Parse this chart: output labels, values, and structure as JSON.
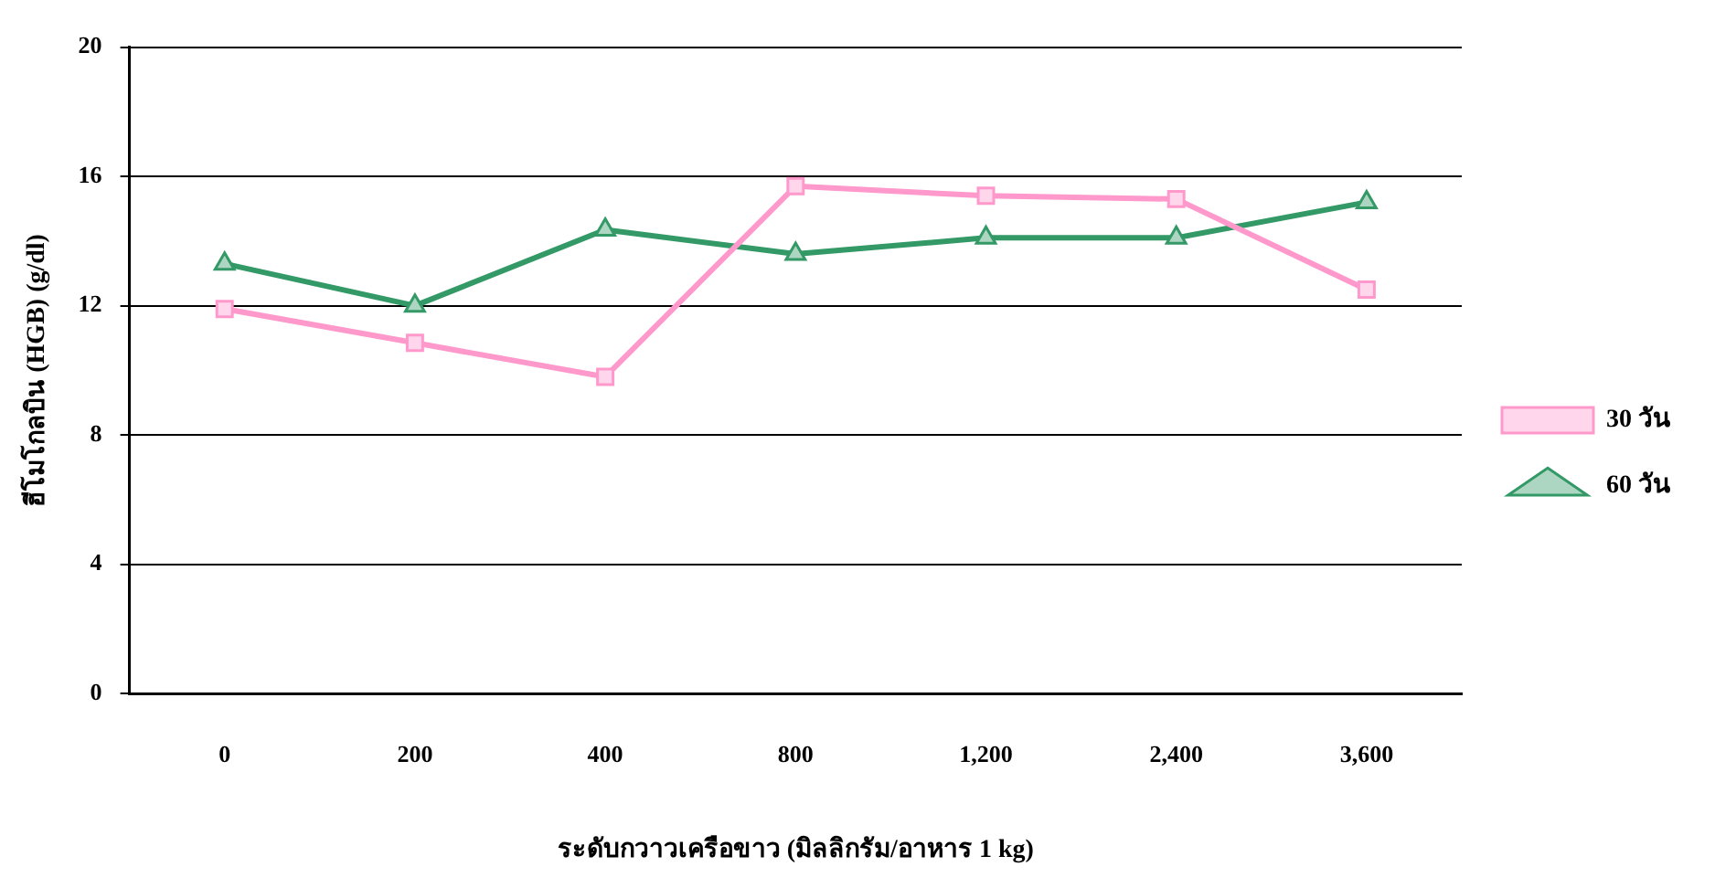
{
  "chart_data": {
    "type": "line",
    "xlabel": "ระดับกวาวเครือขาว (มิลลิกรัม/อาหาร 1 kg)",
    "ylabel": "ฮีโมโกลบิน (HGB) (g/dl)",
    "categories": [
      "0",
      "200",
      "400",
      "800",
      "1,200",
      "2,400",
      "3,600"
    ],
    "series": [
      {
        "name": "30 วัน",
        "color": "#ff99cc",
        "marker": "square",
        "values": [
          11.9,
          10.85,
          9.8,
          15.7,
          15.4,
          15.3,
          12.5
        ]
      },
      {
        "name": "60 วัน",
        "color": "#339966",
        "marker": "triangle",
        "values": [
          13.3,
          12.0,
          14.35,
          13.6,
          14.1,
          14.1,
          15.2
        ]
      }
    ],
    "ylim": [
      0,
      20
    ],
    "yticks": [
      0,
      4,
      8,
      12,
      16,
      20
    ],
    "grid": "y",
    "legend": "right",
    "line_style": "solid"
  }
}
